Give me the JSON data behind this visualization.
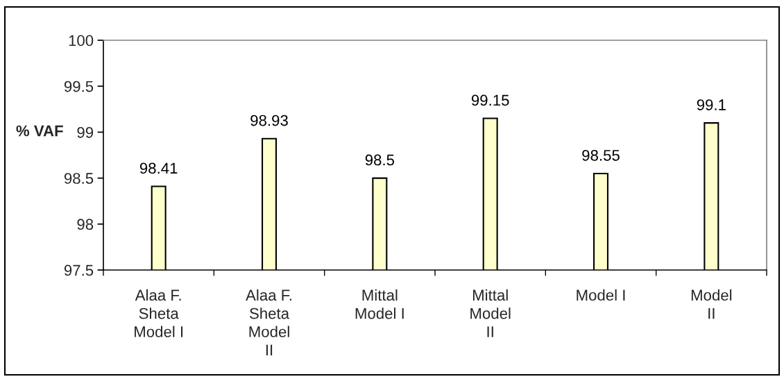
{
  "chart_data": {
    "type": "bar",
    "ylabel": "% VAF",
    "categories": [
      "Alaa F. Sheta Model I",
      "Alaa F. Sheta Model II",
      "Mittal Model I",
      "Mittal Model II",
      "Model I",
      "Model II"
    ],
    "values": [
      98.41,
      98.93,
      98.5,
      99.15,
      98.55,
      99.1
    ],
    "color": "#ffffcc",
    "ylim": [
      97.5,
      100
    ],
    "yticks": [
      97.5,
      98,
      98.5,
      99,
      99.5,
      100
    ],
    "data_labels": true
  }
}
